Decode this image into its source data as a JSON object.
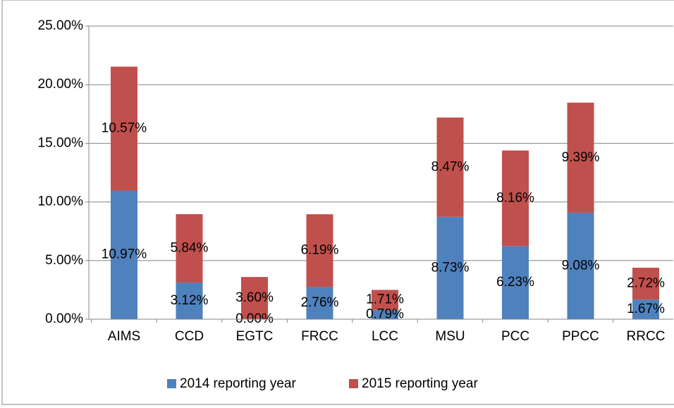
{
  "chart_data": {
    "type": "stacked_bar",
    "categories": [
      "AIMS",
      "CCD",
      "EGTC",
      "FRCC",
      "LCC",
      "MSU",
      "PCC",
      "PPCC",
      "RRCC"
    ],
    "series": [
      {
        "name": "2014 reporting year",
        "color": "#4f81bd",
        "values": [
          10.97,
          3.12,
          0.0,
          2.76,
          0.79,
          8.73,
          6.23,
          9.08,
          1.67
        ],
        "value_labels": [
          "10.97%",
          "3.12%",
          "0.00%",
          "2.76%",
          "0.79%",
          "8.73%",
          "6.23%",
          "9.08%",
          "1.67%"
        ]
      },
      {
        "name": "2015 reporting year",
        "color": "#c0504d",
        "values": [
          10.57,
          5.84,
          3.6,
          6.19,
          1.71,
          8.47,
          8.16,
          9.39,
          2.72
        ],
        "value_labels": [
          "10.57%",
          "5.84%",
          "3.60%",
          "6.19%",
          "1.71%",
          "8.47%",
          "8.16%",
          "9.39%",
          "2.72%"
        ]
      }
    ],
    "ylim": [
      0,
      25
    ],
    "yticks": [
      {
        "value": 0,
        "label": "0.00%"
      },
      {
        "value": 5,
        "label": "5.00%"
      },
      {
        "value": 10,
        "label": "10.00%"
      },
      {
        "value": 15,
        "label": "15.00%"
      },
      {
        "value": 20,
        "label": "20.00%"
      },
      {
        "value": 25,
        "label": "25.00%"
      }
    ],
    "grid": true,
    "legend": "bottom"
  }
}
